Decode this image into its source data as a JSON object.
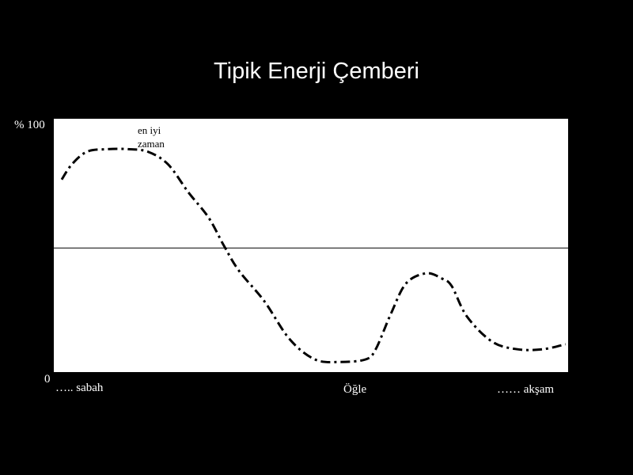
{
  "slide": {
    "title": "Tipik Enerji Çemberi"
  },
  "chart_data": {
    "type": "line",
    "title": "Tipik Enerji Çemberi",
    "y_top_label": "% 100",
    "y_bottom_label": "0",
    "ylim": [
      0,
      100
    ],
    "reference_line": 49,
    "x_labels": {
      "left": "….. sabah",
      "middle": "Öğle",
      "right": "…… akşam"
    },
    "annotation": [
      "en iyi",
      "zaman"
    ],
    "series": [
      {
        "x": [
          0,
          2,
          5,
          9,
          13,
          17,
          21,
          25,
          29,
          32,
          35,
          40,
          45,
          50,
          55,
          60,
          62,
          65,
          68,
          72,
          75,
          77,
          80,
          85,
          90,
          95,
          99.5
        ],
        "y": [
          76,
          82,
          87,
          88,
          88,
          87,
          82,
          71,
          61,
          50,
          40,
          28,
          13,
          5,
          4,
          5,
          9,
          23,
          35,
          39,
          37,
          34,
          22,
          12,
          9,
          9,
          11
        ]
      }
    ],
    "line_style": "dash-dot",
    "colors": {
      "background": "#000000",
      "plot_area": "#ffffff",
      "series": "#000000"
    }
  }
}
